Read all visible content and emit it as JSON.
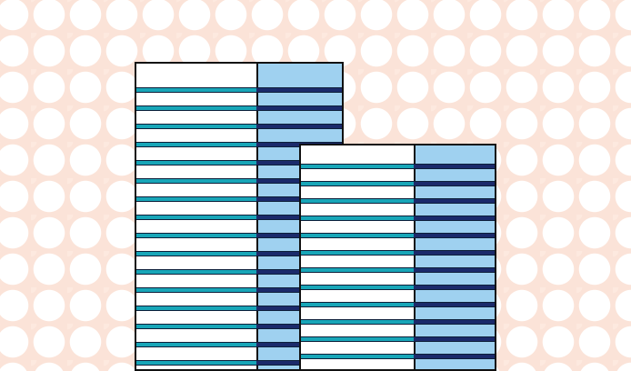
{
  "colors": {
    "background": "#fbe3d8",
    "panel": "#ffffff",
    "blue_column": "#9fd1f0",
    "stripe_teal": "#18a6b8",
    "stripe_dark": "#1b2a6b",
    "border": "#111111"
  },
  "panels": [
    {
      "name": "back",
      "stripe_count": 16
    },
    {
      "name": "front",
      "stripe_count": 13
    }
  ]
}
